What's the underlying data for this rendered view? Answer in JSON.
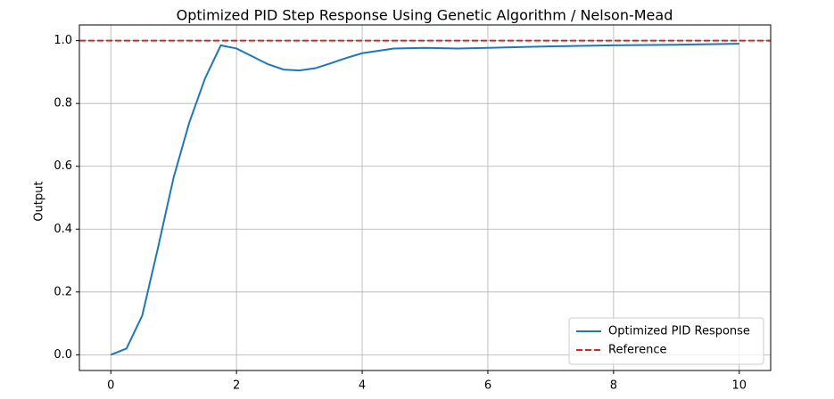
{
  "chart_data": {
    "type": "line",
    "title": "Optimized PID Step Response Using Genetic Algorithm / Nelson-Mead",
    "y_label": "Output",
    "x": [
      0,
      0.25,
      0.5,
      0.75,
      1.0,
      1.25,
      1.5,
      1.75,
      2.0,
      2.25,
      2.5,
      2.75,
      3.0,
      3.25,
      3.5,
      3.75,
      4.0,
      4.5,
      5.0,
      5.5,
      6.0,
      7.0,
      8.0,
      9.0,
      10.0
    ],
    "series": [
      {
        "name": "Optimized PID Response",
        "color": "#1f77b4",
        "values": [
          0,
          0.02,
          0.125,
          0.34,
          0.565,
          0.74,
          0.88,
          0.985,
          0.975,
          0.95,
          0.925,
          0.908,
          0.905,
          0.912,
          0.928,
          0.945,
          0.96,
          0.975,
          0.977,
          0.975,
          0.977,
          0.982,
          0.985,
          0.987,
          0.99
        ]
      }
    ],
    "hlines": [
      {
        "name": "Reference",
        "color": "#d62728",
        "value": 1,
        "dashed": true
      }
    ],
    "xlim": [
      -0.5,
      10.5
    ],
    "ylim": [
      -0.05,
      1.05
    ],
    "xticks": [
      0,
      2,
      4,
      6,
      8,
      10
    ],
    "yticks": [
      {
        "value": 0,
        "label": "0.0"
      },
      0.2,
      0.4,
      0.6,
      0.8,
      {
        "value": 1,
        "label": "1.0"
      }
    ],
    "grid": true,
    "legend": "lower right"
  }
}
